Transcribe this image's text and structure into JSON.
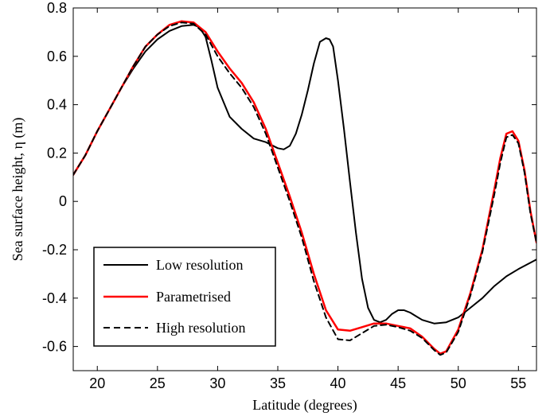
{
  "chart_data": {
    "type": "line",
    "xlabel": "Latitude (degrees)",
    "ylabel": "Sea surface height, η (m)",
    "xlim": [
      18,
      56.5
    ],
    "ylim": [
      -0.7,
      0.8
    ],
    "xticks": [
      20,
      25,
      30,
      35,
      40,
      45,
      50,
      55
    ],
    "yticks": [
      -0.6,
      -0.4,
      -0.2,
      0,
      0.2,
      0.4,
      0.6,
      0.8
    ],
    "xtick_labels": [
      "20",
      "25",
      "30",
      "35",
      "40",
      "45",
      "50",
      "55"
    ],
    "ytick_labels": [
      "-0.6",
      "-0.4",
      "-0.2",
      "0",
      "0.2",
      "0.4",
      "0.6",
      "0.8"
    ],
    "grid": false,
    "legend_position": "lower-left",
    "series": [
      {
        "name": "Low resolution",
        "color": "#000000",
        "dash": "solid",
        "x": [
          18,
          19,
          20,
          21,
          22,
          23,
          24,
          25,
          26,
          27,
          28,
          28.5,
          29,
          29.5,
          30,
          31,
          32,
          33,
          34,
          35,
          35.5,
          36,
          36.5,
          37,
          37.5,
          38,
          38.5,
          39,
          39.3,
          39.6,
          40,
          40.5,
          41,
          41.5,
          42,
          42.5,
          43,
          43.5,
          44,
          44.5,
          45,
          45.5,
          46,
          46.5,
          47,
          48,
          49,
          50,
          51,
          52,
          53,
          54,
          55,
          56.5
        ],
        "y": [
          0.11,
          0.19,
          0.29,
          0.38,
          0.47,
          0.55,
          0.62,
          0.67,
          0.705,
          0.725,
          0.73,
          0.72,
          0.68,
          0.58,
          0.47,
          0.35,
          0.3,
          0.26,
          0.245,
          0.22,
          0.215,
          0.23,
          0.28,
          0.36,
          0.46,
          0.57,
          0.66,
          0.675,
          0.67,
          0.64,
          0.5,
          0.3,
          0.08,
          -0.13,
          -0.32,
          -0.44,
          -0.49,
          -0.5,
          -0.49,
          -0.465,
          -0.45,
          -0.45,
          -0.46,
          -0.475,
          -0.49,
          -0.505,
          -0.5,
          -0.48,
          -0.44,
          -0.4,
          -0.35,
          -0.31,
          -0.28,
          -0.24
        ]
      },
      {
        "name": "Parametrised",
        "color": "#ff0000",
        "dash": "solid",
        "x": [
          18,
          19,
          20,
          21,
          22,
          23,
          24,
          25,
          26,
          27,
          28,
          29,
          30,
          31,
          32,
          33,
          34,
          35,
          36,
          37,
          38,
          39,
          40,
          41,
          42,
          43,
          44,
          45,
          46,
          47,
          48,
          48.5,
          49,
          50,
          51,
          52,
          53,
          53.5,
          54,
          54.5,
          55,
          55.5,
          56,
          56.5
        ],
        "y": [
          0.11,
          0.19,
          0.29,
          0.38,
          0.47,
          0.56,
          0.64,
          0.69,
          0.73,
          0.745,
          0.74,
          0.7,
          0.62,
          0.55,
          0.49,
          0.41,
          0.3,
          0.16,
          0.02,
          -0.13,
          -0.3,
          -0.45,
          -0.53,
          -0.535,
          -0.52,
          -0.505,
          -0.505,
          -0.515,
          -0.525,
          -0.56,
          -0.61,
          -0.63,
          -0.62,
          -0.53,
          -0.38,
          -0.2,
          0.05,
          0.18,
          0.28,
          0.29,
          0.25,
          0.13,
          -0.04,
          -0.17
        ]
      },
      {
        "name": "High resolution",
        "color": "#000000",
        "dash": "dashed",
        "x": [
          18,
          19,
          20,
          21,
          22,
          23,
          24,
          25,
          26,
          27,
          28,
          29,
          30,
          31,
          32,
          33,
          34,
          35,
          36,
          37,
          38,
          39,
          40,
          41,
          42,
          43,
          44,
          45,
          46,
          47,
          48,
          48.5,
          49,
          50,
          51,
          52,
          53,
          53.5,
          54,
          54.5,
          55,
          55.5,
          56,
          56.5
        ],
        "y": [
          0.11,
          0.19,
          0.29,
          0.38,
          0.47,
          0.56,
          0.64,
          0.69,
          0.725,
          0.74,
          0.735,
          0.69,
          0.6,
          0.53,
          0.47,
          0.39,
          0.28,
          0.14,
          0.0,
          -0.15,
          -0.33,
          -0.48,
          -0.57,
          -0.575,
          -0.545,
          -0.515,
          -0.51,
          -0.52,
          -0.535,
          -0.565,
          -0.615,
          -0.635,
          -0.625,
          -0.54,
          -0.39,
          -0.21,
          0.03,
          0.16,
          0.265,
          0.275,
          0.24,
          0.12,
          -0.05,
          -0.17
        ]
      }
    ]
  }
}
